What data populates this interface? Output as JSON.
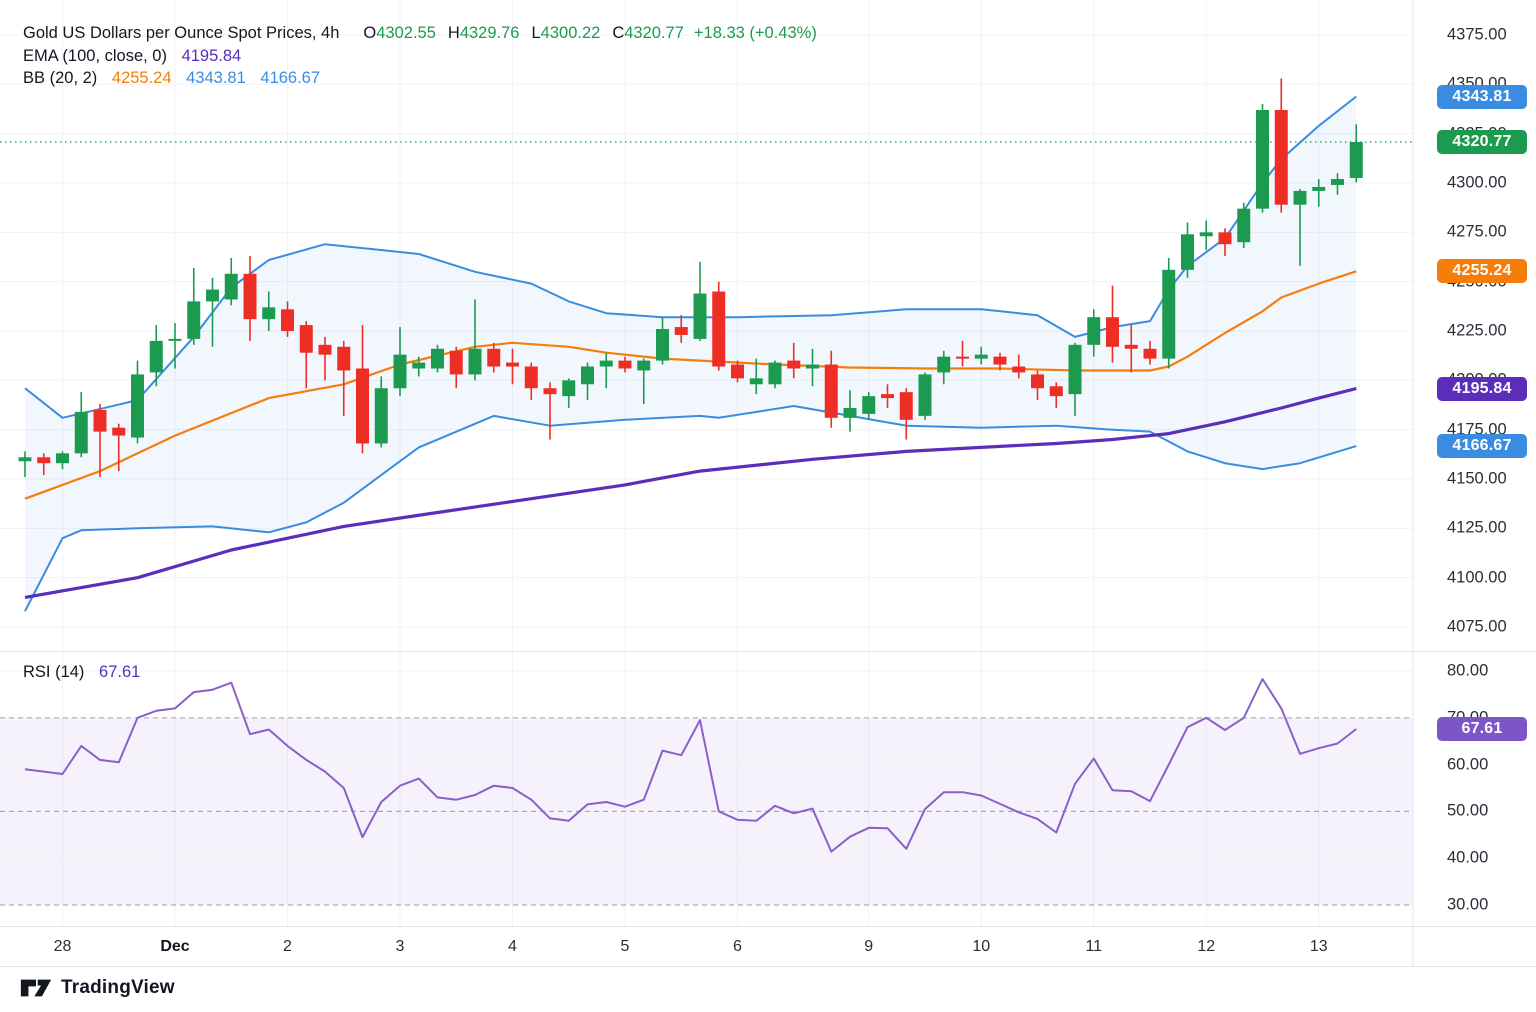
{
  "colors": {
    "up": "#1c9b50",
    "down": "#ee2e24",
    "blue": "#3a8ce0",
    "orange": "#f57d0a",
    "ema": "#5a2dbb",
    "rsi_line": "#8a5fc9",
    "rsi_chip": "#7c55c8",
    "bb_fill": "rgba(58,140,224,0.07)",
    "rsi_fill": "rgba(138,95,201,0.08)",
    "grid": "#f0f2f7",
    "sep": "#e2e5ec",
    "text": "#2a2e39",
    "title": "#131722"
  },
  "legend": {
    "title": "Gold US Dollars per Ounce Spot Prices, 4h",
    "ohlc": {
      "o_label": "O",
      "o": "4302.55",
      "h_label": "H",
      "h": "4329.76",
      "l_label": "L",
      "l": "4300.22",
      "c_label": "C",
      "c": "4320.77",
      "change": "+18.33 (+0.43%)"
    },
    "ema": {
      "label": "EMA (100, close, 0)",
      "value": "4195.84"
    },
    "bb": {
      "label": "BB (20, 2)",
      "basis": "4255.24",
      "upper": "4343.81",
      "lower": "4166.67"
    },
    "rsi": {
      "label": "RSI (14)",
      "value": "67.61"
    }
  },
  "footer": {
    "brand": "TradingView"
  },
  "chart_data": [
    {
      "type": "candlestick",
      "title": "Gold US Dollars per Ounce Spot Prices",
      "timeframe": "4h",
      "ohlc_display": {
        "open": 4302.55,
        "high": 4329.76,
        "low": 4300.22,
        "close": 4320.77,
        "change": "+18.33 (+0.43%)"
      },
      "ylim": [
        4062,
        4393
      ],
      "y_axis": {
        "labels": [
          "4375.00",
          "4350.00",
          "4325.00",
          "4300.00",
          "4275.00",
          "4250.00",
          "4225.00",
          "4200.00",
          "4175.00",
          "4150.00",
          "4125.00",
          "4100.00",
          "4075.00"
        ]
      },
      "x_ticks": [
        {
          "i": 2,
          "label": "28"
        },
        {
          "i": 8,
          "label": "Dec",
          "bold": true
        },
        {
          "i": 14,
          "label": "2"
        },
        {
          "i": 20,
          "label": "3"
        },
        {
          "i": 26,
          "label": "4"
        },
        {
          "i": 32,
          "label": "5"
        },
        {
          "i": 38,
          "label": "6"
        },
        {
          "i": 45,
          "label": "9"
        },
        {
          "i": 51,
          "label": "10"
        },
        {
          "i": 57,
          "label": "11"
        },
        {
          "i": 63,
          "label": "12"
        },
        {
          "i": 69,
          "label": "13"
        }
      ],
      "candles": [
        [
          4159,
          4164,
          4151,
          4161
        ],
        [
          4161,
          4163,
          4152,
          4158
        ],
        [
          4158,
          4164,
          4155,
          4163
        ],
        [
          4163,
          4194,
          4161,
          4184
        ],
        [
          4185,
          4188,
          4151,
          4174
        ],
        [
          4176,
          4178,
          4154,
          4172
        ],
        [
          4171,
          4210,
          4168,
          4203
        ],
        [
          4204,
          4228,
          4197,
          4220
        ],
        [
          4220,
          4229,
          4206,
          4221
        ],
        [
          4221,
          4257,
          4218,
          4240
        ],
        [
          4240,
          4252,
          4217,
          4246
        ],
        [
          4241,
          4262,
          4238,
          4254
        ],
        [
          4254,
          4263,
          4220,
          4231
        ],
        [
          4231,
          4245,
          4225,
          4237
        ],
        [
          4236,
          4240,
          4222,
          4225
        ],
        [
          4228,
          4230,
          4196,
          4214
        ],
        [
          4218,
          4222,
          4200,
          4213
        ],
        [
          4217,
          4220,
          4182,
          4205
        ],
        [
          4206,
          4228,
          4163,
          4168
        ],
        [
          4168,
          4202,
          4166,
          4196
        ],
        [
          4196,
          4227,
          4192,
          4213
        ],
        [
          4206,
          4212,
          4202,
          4209
        ],
        [
          4206,
          4218,
          4204,
          4216
        ],
        [
          4215,
          4217,
          4196,
          4203
        ],
        [
          4203,
          4241,
          4200,
          4216
        ],
        [
          4216,
          4219,
          4204,
          4207
        ],
        [
          4209,
          4216,
          4198,
          4207
        ],
        [
          4207,
          4209,
          4190,
          4196
        ],
        [
          4196,
          4199,
          4170,
          4193
        ],
        [
          4192,
          4201,
          4186,
          4200
        ],
        [
          4198,
          4209,
          4190,
          4207
        ],
        [
          4207,
          4214,
          4196,
          4210
        ],
        [
          4210,
          4212,
          4204,
          4206
        ],
        [
          4205,
          4211,
          4188,
          4210
        ],
        [
          4210,
          4232,
          4208,
          4226
        ],
        [
          4227,
          4233,
          4219,
          4223
        ],
        [
          4221,
          4260,
          4220,
          4244
        ],
        [
          4245,
          4250,
          4205,
          4207
        ],
        [
          4208,
          4210,
          4199,
          4201
        ],
        [
          4198,
          4211,
          4193,
          4201
        ],
        [
          4198,
          4210,
          4196,
          4209
        ],
        [
          4210,
          4219,
          4201,
          4206
        ],
        [
          4206,
          4216,
          4197,
          4208
        ],
        [
          4208,
          4215,
          4176,
          4181
        ],
        [
          4181,
          4195,
          4174,
          4186
        ],
        [
          4183,
          4194,
          4180,
          4192
        ],
        [
          4193,
          4198,
          4186,
          4191
        ],
        [
          4194,
          4196,
          4170,
          4180
        ],
        [
          4182,
          4204,
          4180,
          4203
        ],
        [
          4204,
          4215,
          4198,
          4212
        ],
        [
          4212,
          4220,
          4207,
          4211
        ],
        [
          4211,
          4217,
          4208,
          4213
        ],
        [
          4212,
          4214,
          4205,
          4208
        ],
        [
          4207,
          4213,
          4201,
          4204
        ],
        [
          4203,
          4205,
          4190,
          4196
        ],
        [
          4197,
          4199,
          4186,
          4192
        ],
        [
          4193,
          4219,
          4182,
          4218
        ],
        [
          4218,
          4236,
          4212,
          4232
        ],
        [
          4232,
          4248,
          4209,
          4217
        ],
        [
          4218,
          4228,
          4204,
          4216
        ],
        [
          4216,
          4220,
          4208,
          4211
        ],
        [
          4211,
          4262,
          4206,
          4256
        ],
        [
          4256,
          4280,
          4252,
          4274
        ],
        [
          4273,
          4281,
          4266,
          4275
        ],
        [
          4275,
          4277,
          4263,
          4269
        ],
        [
          4270,
          4290,
          4267,
          4287
        ],
        [
          4287,
          4340,
          4285,
          4337
        ],
        [
          4337,
          4353,
          4285,
          4289
        ],
        [
          4289,
          4297,
          4258,
          4296
        ],
        [
          4296,
          4302,
          4288,
          4298
        ],
        [
          4299,
          4305,
          4294,
          4302
        ],
        [
          4302.55,
          4329.76,
          4300.22,
          4320.77
        ]
      ],
      "overlays": {
        "ema100": {
          "name": "EMA (100, close, 0)",
          "value": 4195.84,
          "points": [
            [
              0,
              4090
            ],
            [
              6,
              4100
            ],
            [
              11,
              4114
            ],
            [
              17,
              4126
            ],
            [
              22,
              4133
            ],
            [
              27,
              4140
            ],
            [
              32,
              4147
            ],
            [
              36,
              4154
            ],
            [
              42,
              4160
            ],
            [
              47,
              4164
            ],
            [
              52,
              4166.5
            ],
            [
              55,
              4168
            ],
            [
              58,
              4170
            ],
            [
              61,
              4173
            ],
            [
              64,
              4179
            ],
            [
              67,
              4186
            ],
            [
              69,
              4191
            ],
            [
              71,
              4195.84
            ]
          ]
        },
        "bollinger": {
          "name": "BB (20, 2)",
          "basis_value": 4255.24,
          "upper_value": 4343.81,
          "lower_value": 4166.67,
          "basis": [
            [
              0,
              4140
            ],
            [
              4,
              4154
            ],
            [
              8,
              4172
            ],
            [
              13,
              4191
            ],
            [
              17,
              4198
            ],
            [
              20,
              4208
            ],
            [
              24,
              4217
            ],
            [
              26,
              4219
            ],
            [
              29,
              4217
            ],
            [
              31,
              4214
            ],
            [
              34,
              4211
            ],
            [
              36,
              4210
            ],
            [
              40,
              4208
            ],
            [
              44,
              4206.5
            ],
            [
              48,
              4206
            ],
            [
              52,
              4206
            ],
            [
              56,
              4205
            ],
            [
              60,
              4205
            ],
            [
              61,
              4207
            ],
            [
              62,
              4212
            ],
            [
              64,
              4224
            ],
            [
              66,
              4235
            ],
            [
              67,
              4242
            ],
            [
              69,
              4249
            ],
            [
              71,
              4255.24
            ]
          ],
          "upper": [
            [
              0,
              4196
            ],
            [
              2,
              4181
            ],
            [
              6,
              4190
            ],
            [
              9,
              4222
            ],
            [
              11,
              4247
            ],
            [
              13,
              4261
            ],
            [
              16,
              4269
            ],
            [
              21,
              4264
            ],
            [
              24,
              4255
            ],
            [
              27,
              4249
            ],
            [
              29,
              4240
            ],
            [
              31,
              4234
            ],
            [
              34,
              4232
            ],
            [
              38,
              4232
            ],
            [
              43,
              4233
            ],
            [
              47,
              4236
            ],
            [
              51,
              4236
            ],
            [
              54,
              4233
            ],
            [
              56,
              4222
            ],
            [
              58,
              4227
            ],
            [
              60,
              4230
            ],
            [
              61,
              4246
            ],
            [
              62,
              4258
            ],
            [
              64,
              4272
            ],
            [
              66,
              4300
            ],
            [
              67,
              4312
            ],
            [
              69,
              4329
            ],
            [
              71,
              4343.81
            ]
          ],
          "lower": [
            [
              0,
              4083
            ],
            [
              2,
              4120
            ],
            [
              3,
              4124
            ],
            [
              6,
              4125
            ],
            [
              10,
              4126
            ],
            [
              13,
              4123
            ],
            [
              15,
              4128
            ],
            [
              17,
              4138
            ],
            [
              21,
              4166
            ],
            [
              25,
              4182
            ],
            [
              28,
              4177
            ],
            [
              32,
              4180
            ],
            [
              36,
              4182
            ],
            [
              37,
              4181
            ],
            [
              41,
              4187
            ],
            [
              44,
              4182
            ],
            [
              47,
              4177
            ],
            [
              51,
              4176
            ],
            [
              55,
              4177
            ],
            [
              58,
              4175
            ],
            [
              60,
              4174
            ],
            [
              62,
              4164
            ],
            [
              64,
              4158
            ],
            [
              66,
              4155
            ],
            [
              68,
              4158
            ],
            [
              71,
              4166.67
            ]
          ]
        }
      },
      "last_close_line": 4320.77,
      "price_chips": [
        {
          "label": "4343.81",
          "color_key": "blue"
        },
        {
          "label": "4320.77",
          "color_key": "up"
        },
        {
          "label": "4255.24",
          "color_key": "orange"
        },
        {
          "label": "4195.84",
          "color_key": "ema"
        },
        {
          "label": "4166.67",
          "color_key": "blue"
        }
      ]
    },
    {
      "type": "line",
      "name": "RSI (14)",
      "value_display": "67.61",
      "ylim": [
        23,
        84
      ],
      "y_axis": {
        "labels": [
          "80.00",
          "70.00",
          "60.00",
          "50.00",
          "40.00",
          "30.00"
        ]
      },
      "levels_dashed": [
        70,
        50,
        30
      ],
      "levels_solid": [
        80,
        60,
        40
      ],
      "band": [
        30,
        70
      ],
      "values": [
        59,
        58.5,
        58,
        64,
        61,
        60.5,
        70,
        71.5,
        72,
        75.5,
        76,
        77.5,
        66.5,
        67.5,
        64,
        61,
        58.5,
        55,
        44.5,
        52,
        55.5,
        57,
        53,
        52.5,
        53.5,
        55.5,
        55,
        52.5,
        48.5,
        48,
        51.5,
        52,
        51,
        52.5,
        63,
        62,
        69.5,
        50,
        48.2,
        48,
        51.2,
        49.6,
        50.6,
        41.4,
        44.6,
        46.5,
        46.4,
        42,
        50.5,
        54.1,
        54.1,
        53.4,
        51.6,
        49.8,
        48.4,
        45.5,
        55.9,
        61.3,
        54.5,
        54.3,
        52.2,
        60,
        68,
        70,
        67.4,
        70,
        78.3,
        72,
        62.3,
        63.5,
        64.5,
        67.61
      ],
      "chip": {
        "label": "67.61",
        "color_key": "rsi_chip"
      }
    }
  ]
}
